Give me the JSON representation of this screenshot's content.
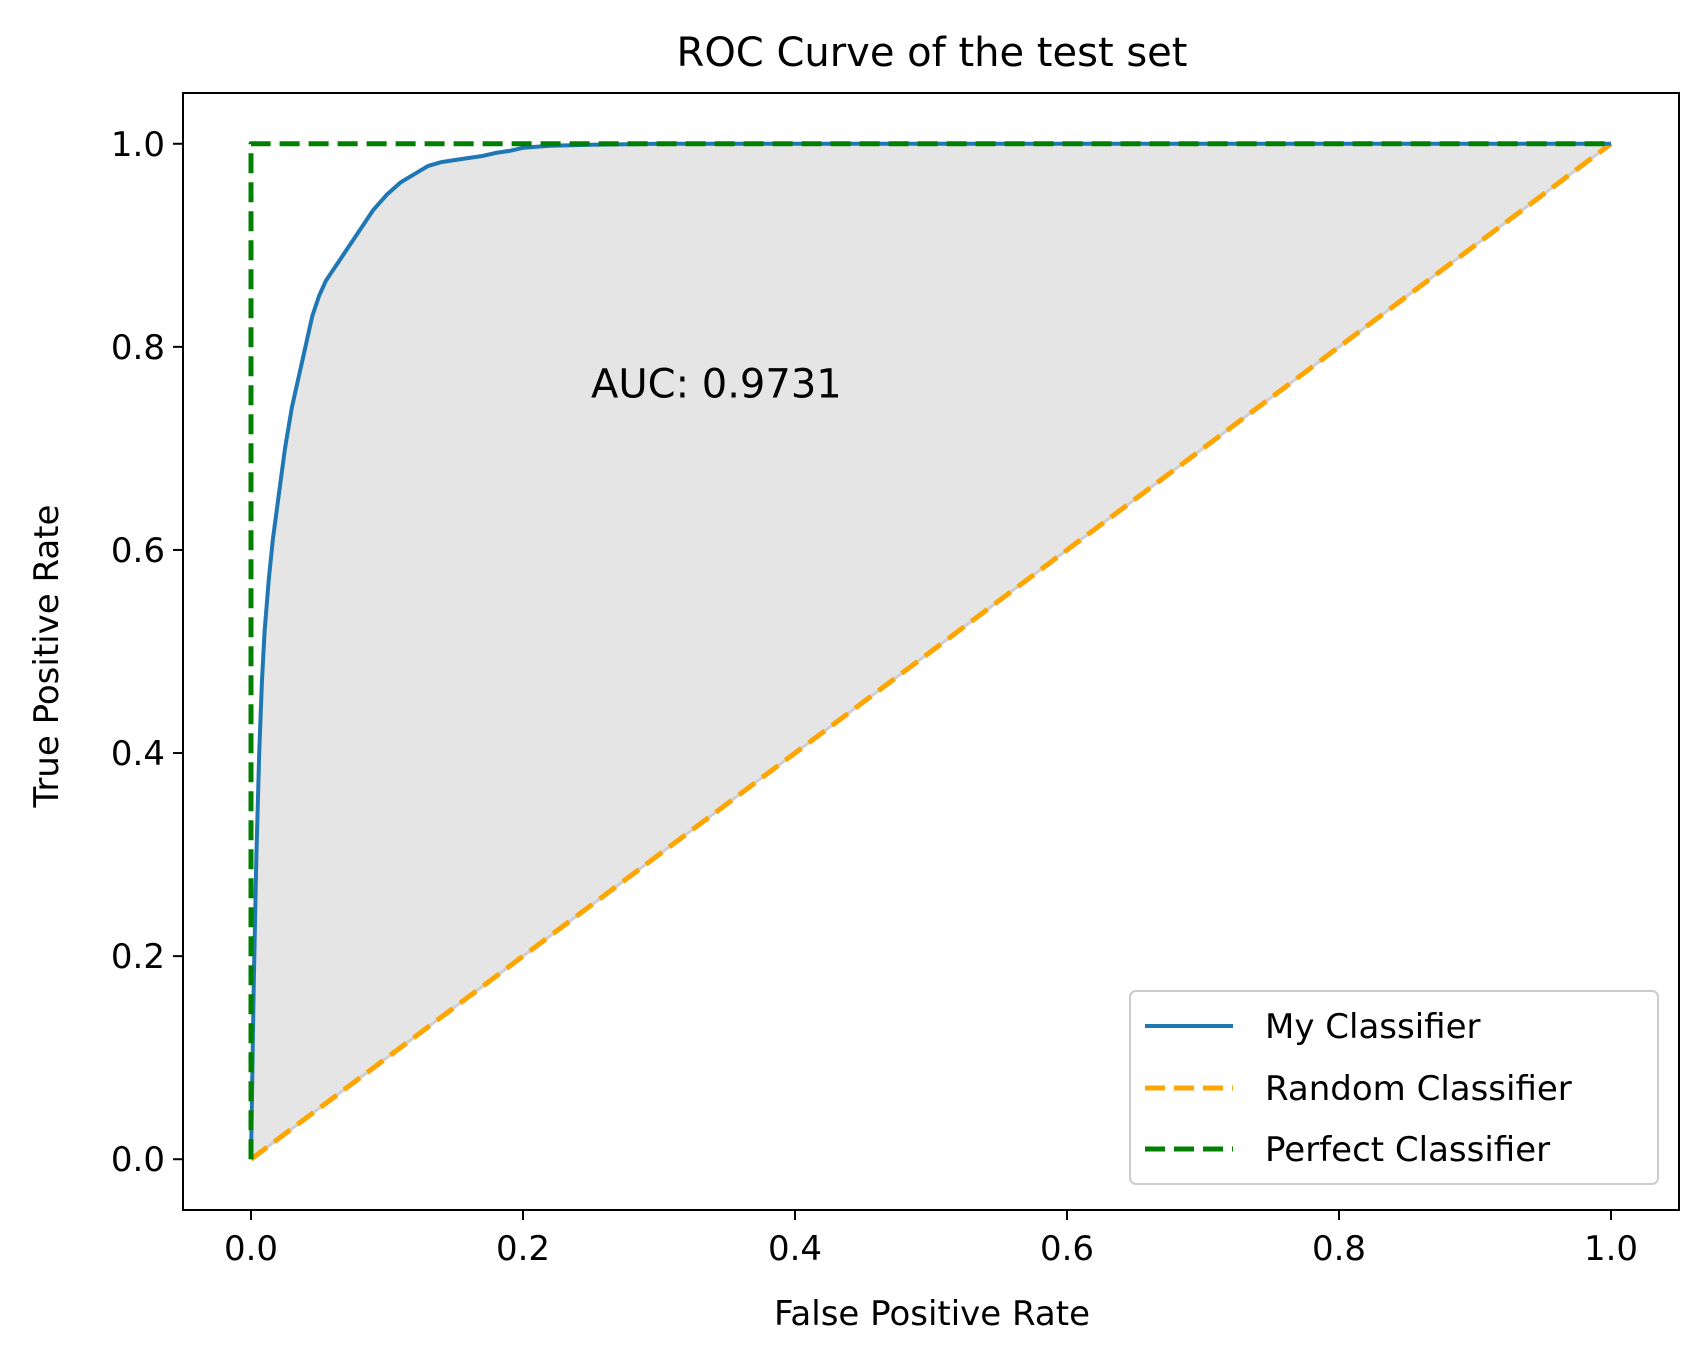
{
  "chart_data": {
    "type": "line",
    "title": "ROC Curve of the test set",
    "xlabel": "False Positive Rate",
    "ylabel": "True Positive Rate",
    "xlim": [
      -0.05,
      1.05
    ],
    "ylim": [
      -0.05,
      1.05
    ],
    "xticks": [
      0.0,
      0.2,
      0.4,
      0.6,
      0.8,
      1.0
    ],
    "yticks": [
      0.0,
      0.2,
      0.4,
      0.6,
      0.8,
      1.0
    ],
    "xtick_labels": [
      "0.0",
      "0.2",
      "0.4",
      "0.6",
      "0.8",
      "1.0"
    ],
    "ytick_labels": [
      "0.0",
      "0.2",
      "0.4",
      "0.6",
      "0.8",
      "1.0"
    ],
    "grid": false,
    "legend_position": "lower-right",
    "annotation": {
      "text": "AUC: 0.9731",
      "x": 0.25,
      "y": 0.75
    },
    "fill_between": {
      "series": "My Classifier",
      "color": "#e5e5e5"
    },
    "series": [
      {
        "name": "My Classifier",
        "style": "solid",
        "color": "#1f77b4",
        "x": [
          0.0,
          0.002,
          0.004,
          0.006,
          0.008,
          0.01,
          0.013,
          0.016,
          0.02,
          0.025,
          0.03,
          0.035,
          0.04,
          0.045,
          0.05,
          0.055,
          0.06,
          0.065,
          0.07,
          0.08,
          0.09,
          0.1,
          0.11,
          0.12,
          0.13,
          0.14,
          0.15,
          0.16,
          0.17,
          0.18,
          0.19,
          0.2,
          0.22,
          0.25,
          0.3,
          0.4,
          0.6,
          0.8,
          1.0
        ],
        "y": [
          0.0,
          0.17,
          0.3,
          0.4,
          0.47,
          0.52,
          0.57,
          0.61,
          0.65,
          0.7,
          0.74,
          0.77,
          0.8,
          0.83,
          0.85,
          0.865,
          0.875,
          0.885,
          0.895,
          0.915,
          0.935,
          0.95,
          0.962,
          0.97,
          0.978,
          0.982,
          0.984,
          0.986,
          0.988,
          0.991,
          0.993,
          0.996,
          0.998,
          0.999,
          1.0,
          1.0,
          1.0,
          1.0,
          1.0
        ]
      },
      {
        "name": "Random Classifier",
        "style": "dashed",
        "color": "#ffa500",
        "x": [
          0.0,
          1.0
        ],
        "y": [
          0.0,
          1.0
        ]
      },
      {
        "name": "Perfect Classifier",
        "style": "dashed",
        "color": "#008000",
        "x": [
          0.0,
          0.0,
          1.0
        ],
        "y": [
          0.0,
          1.0,
          1.0
        ]
      }
    ]
  }
}
